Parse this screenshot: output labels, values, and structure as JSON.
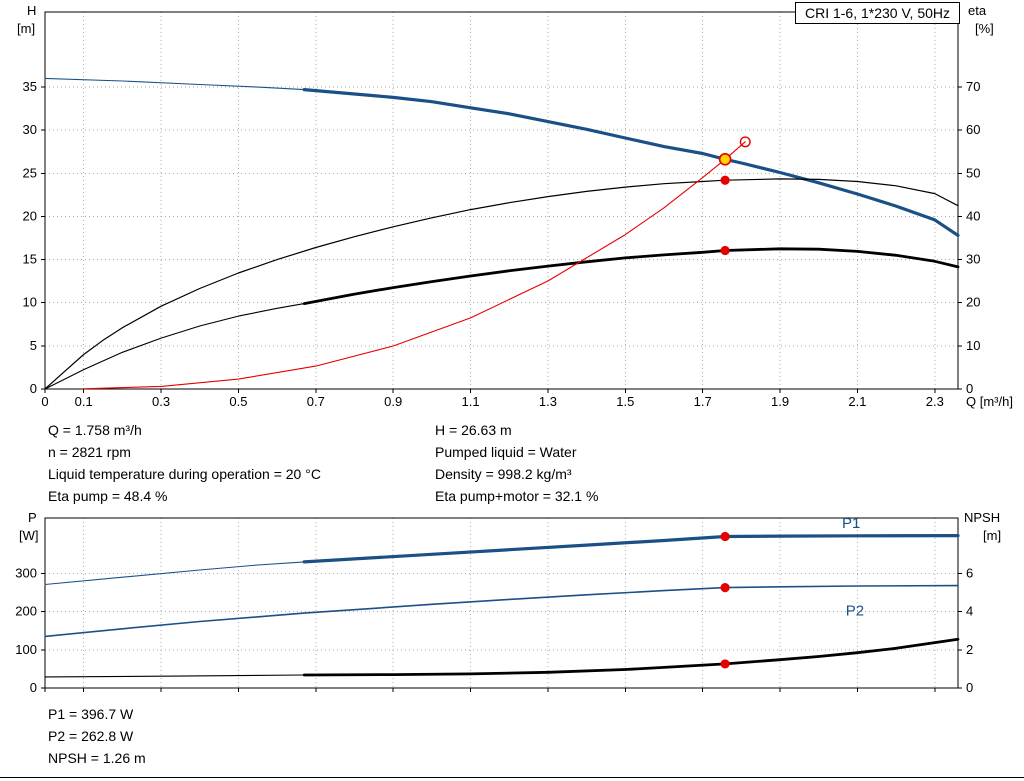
{
  "title_box": "CRI 1-6, 1*230 V, 50Hz",
  "info_top": {
    "left": [
      "Q = 1.758 m³/h",
      "n = 2821 rpm",
      "Liquid temperature during operation = 20 °C",
      "Eta pump = 48.4 %"
    ],
    "right": [
      "H = 26.63 m",
      "Pumped liquid = Water",
      "Density = 998.2 kg/m³",
      "Eta pump+motor = 32.1 %"
    ]
  },
  "info_bottom": [
    "P1 = 396.7 W",
    "P2 = 262.8 W",
    "NPSH = 1.26 m"
  ],
  "colors": {
    "curve_blue": "#1b5087",
    "curve_black": "#000000",
    "curve_red": "#e60000",
    "duty_yellow": "#ffd500",
    "grid": "#ababab",
    "axis": "#000000"
  },
  "chart_data": [
    {
      "type": "line",
      "title": "CRI 1-6, 1*230 V, 50Hz",
      "x": {
        "label": "Q [m³/h]",
        "min": 0,
        "max": 2.36,
        "ticks": [
          0,
          0.1,
          0.3,
          0.5,
          0.7,
          0.9,
          1.1,
          1.3,
          1.5,
          1.7,
          1.9,
          2.1,
          2.3
        ]
      },
      "y_left": {
        "label": "H",
        "unit": "[m]",
        "min": 0,
        "max": 43.7,
        "ticks": [
          0,
          5,
          10,
          15,
          20,
          25,
          30,
          35
        ]
      },
      "y_right": {
        "label": "eta",
        "unit": "[%]",
        "min": 0,
        "max": 87.4,
        "ticks": [
          0,
          10,
          20,
          30,
          40,
          50,
          60,
          70
        ]
      },
      "series": [
        {
          "name": "h-q-low",
          "axis": "left",
          "color": "#1b5087",
          "width": 1.1,
          "points": [
            [
              0,
              36
            ],
            [
              0.2,
              35.7
            ],
            [
              0.4,
              35.3
            ],
            [
              0.55,
              35.0
            ],
            [
              0.67,
              34.7
            ]
          ]
        },
        {
          "name": "h-q",
          "axis": "left",
          "color": "#1b5087",
          "width": 3.2,
          "points": [
            [
              0.67,
              34.7
            ],
            [
              0.8,
              34.2
            ],
            [
              0.9,
              33.8
            ],
            [
              1.0,
              33.3
            ],
            [
              1.1,
              32.6
            ],
            [
              1.2,
              31.9
            ],
            [
              1.3,
              31.0
            ],
            [
              1.4,
              30.1
            ],
            [
              1.5,
              29.1
            ],
            [
              1.6,
              28.1
            ],
            [
              1.7,
              27.3
            ],
            [
              1.758,
              26.63
            ],
            [
              1.8,
              26.2
            ],
            [
              1.9,
              25.1
            ],
            [
              2.0,
              23.9
            ],
            [
              2.1,
              22.6
            ],
            [
              2.2,
              21.2
            ],
            [
              2.3,
              19.6
            ],
            [
              2.36,
              17.8
            ]
          ]
        },
        {
          "name": "eta-pump",
          "axis": "right",
          "color": "#000000",
          "width": 1.2,
          "points": [
            [
              0,
              0
            ],
            [
              0.05,
              4
            ],
            [
              0.1,
              8
            ],
            [
              0.15,
              11.3
            ],
            [
              0.2,
              14.2
            ],
            [
              0.3,
              19.2
            ],
            [
              0.4,
              23.3
            ],
            [
              0.5,
              26.9
            ],
            [
              0.6,
              30.0
            ],
            [
              0.7,
              32.8
            ],
            [
              0.8,
              35.3
            ],
            [
              0.9,
              37.6
            ],
            [
              1.0,
              39.7
            ],
            [
              1.1,
              41.6
            ],
            [
              1.2,
              43.2
            ],
            [
              1.3,
              44.6
            ],
            [
              1.4,
              45.8
            ],
            [
              1.5,
              46.8
            ],
            [
              1.6,
              47.6
            ],
            [
              1.7,
              48.1
            ],
            [
              1.758,
              48.4
            ],
            [
              1.9,
              48.7
            ],
            [
              2.0,
              48.6
            ],
            [
              2.1,
              48.1
            ],
            [
              2.2,
              47.1
            ],
            [
              2.3,
              45.3
            ],
            [
              2.36,
              42.5
            ]
          ]
        },
        {
          "name": "eta-pump-motor-low",
          "axis": "right",
          "color": "#000000",
          "width": 1.1,
          "points": [
            [
              0,
              0
            ],
            [
              0.1,
              4.5
            ],
            [
              0.2,
              8.5
            ],
            [
              0.3,
              11.8
            ],
            [
              0.4,
              14.6
            ],
            [
              0.5,
              16.9
            ],
            [
              0.6,
              18.7
            ],
            [
              0.67,
              19.8
            ]
          ]
        },
        {
          "name": "eta-pump-motor",
          "axis": "right",
          "color": "#000000",
          "width": 2.8,
          "points": [
            [
              0.67,
              19.8
            ],
            [
              0.8,
              22.0
            ],
            [
              0.9,
              23.5
            ],
            [
              1.0,
              24.9
            ],
            [
              1.1,
              26.2
            ],
            [
              1.2,
              27.4
            ],
            [
              1.3,
              28.5
            ],
            [
              1.4,
              29.5
            ],
            [
              1.5,
              30.4
            ],
            [
              1.6,
              31.1
            ],
            [
              1.7,
              31.7
            ],
            [
              1.758,
              32.1
            ],
            [
              1.9,
              32.5
            ],
            [
              2.0,
              32.4
            ],
            [
              2.1,
              31.9
            ],
            [
              2.2,
              31.0
            ],
            [
              2.3,
              29.6
            ],
            [
              2.36,
              28.3
            ]
          ]
        },
        {
          "name": "system-curve",
          "axis": "left",
          "color": "#e60000",
          "width": 1.1,
          "points": [
            [
              0.1,
              0.02
            ],
            [
              0.3,
              0.3
            ],
            [
              0.5,
              1.15
            ],
            [
              0.7,
              2.66
            ],
            [
              0.9,
              4.99
            ],
            [
              1.1,
              8.24
            ],
            [
              1.3,
              12.52
            ],
            [
              1.5,
              17.9
            ],
            [
              1.6,
              21.0
            ],
            [
              1.7,
              24.5
            ],
            [
              1.758,
              26.63
            ],
            [
              1.81,
              28.65
            ]
          ]
        }
      ],
      "markers": [
        {
          "name": "open-point",
          "x": 1.81,
          "y": 28.65,
          "axis": "left",
          "style": "open"
        },
        {
          "name": "duty-point",
          "x": 1.758,
          "y": 26.63,
          "axis": "left",
          "style": "duty"
        },
        {
          "name": "eta-pump-point",
          "x": 1.758,
          "y": 48.4,
          "axis": "right",
          "style": "dot"
        },
        {
          "name": "eta-pump-motor-point",
          "x": 1.758,
          "y": 32.1,
          "axis": "right",
          "style": "dot"
        }
      ],
      "annotations": []
    },
    {
      "type": "line",
      "title": "",
      "x": {
        "label": "",
        "min": 0,
        "max": 2.36,
        "ticks": [
          0,
          0.1,
          0.3,
          0.5,
          0.7,
          0.9,
          1.1,
          1.3,
          1.5,
          1.7,
          1.9,
          2.1,
          2.3
        ]
      },
      "y_left": {
        "label": "P",
        "unit": "[W]",
        "min": 0,
        "max": 445,
        "ticks": [
          0,
          100,
          200,
          300
        ]
      },
      "y_right": {
        "label": "NPSH",
        "unit": "[m]",
        "min": 0,
        "max": 8.9,
        "ticks": [
          0,
          2,
          4,
          6
        ]
      },
      "series": [
        {
          "name": "p1-low",
          "axis": "left",
          "color": "#1b5087",
          "width": 1.1,
          "points": [
            [
              0,
              271
            ],
            [
              0.2,
              290
            ],
            [
              0.4,
              309
            ],
            [
              0.55,
              322
            ],
            [
              0.67,
              330
            ]
          ]
        },
        {
          "name": "p1",
          "axis": "left",
          "color": "#1b5087",
          "width": 3.2,
          "points": [
            [
              0.67,
              330
            ],
            [
              0.8,
              338
            ],
            [
              1.0,
              350
            ],
            [
              1.2,
              362
            ],
            [
              1.4,
              374
            ],
            [
              1.6,
              386
            ],
            [
              1.758,
              396.7
            ],
            [
              1.9,
              397.5
            ],
            [
              2.1,
              398.5
            ],
            [
              2.36,
              399
            ]
          ]
        },
        {
          "name": "p2",
          "axis": "left",
          "color": "#1b5087",
          "width": 1.6,
          "points": [
            [
              0,
              135
            ],
            [
              0.2,
              155
            ],
            [
              0.4,
              174
            ],
            [
              0.67,
              196
            ],
            [
              0.8,
              205
            ],
            [
              1.0,
              219
            ],
            [
              1.2,
              232
            ],
            [
              1.4,
              244
            ],
            [
              1.6,
              255
            ],
            [
              1.758,
              262.8
            ],
            [
              1.9,
              265
            ],
            [
              2.1,
              267
            ],
            [
              2.36,
              268
            ]
          ]
        },
        {
          "name": "npsh-low",
          "axis": "right",
          "color": "#000000",
          "width": 1.1,
          "points": [
            [
              0,
              0.58
            ],
            [
              0.3,
              0.62
            ],
            [
              0.67,
              0.68
            ]
          ]
        },
        {
          "name": "npsh",
          "axis": "right",
          "color": "#000000",
          "width": 2.8,
          "points": [
            [
              0.67,
              0.68
            ],
            [
              0.9,
              0.7
            ],
            [
              1.1,
              0.74
            ],
            [
              1.3,
              0.82
            ],
            [
              1.5,
              0.97
            ],
            [
              1.6,
              1.08
            ],
            [
              1.758,
              1.26
            ],
            [
              1.9,
              1.48
            ],
            [
              2.0,
              1.65
            ],
            [
              2.1,
              1.85
            ],
            [
              2.2,
              2.08
            ],
            [
              2.36,
              2.55
            ]
          ]
        }
      ],
      "markers": [
        {
          "name": "p1-point",
          "x": 1.758,
          "y": 396.7,
          "axis": "left",
          "style": "dot"
        },
        {
          "name": "p2-point",
          "x": 1.758,
          "y": 262.8,
          "axis": "left",
          "style": "dot"
        },
        {
          "name": "npsh-point",
          "x": 1.758,
          "y": 1.26,
          "axis": "right",
          "style": "dot"
        }
      ],
      "annotations": [
        {
          "text": "P1",
          "x": 2.06,
          "y": 419,
          "axis": "left",
          "color": "#1b5087"
        },
        {
          "text": "P2",
          "x": 2.07,
          "y": 190,
          "axis": "left",
          "color": "#1b5087"
        }
      ]
    }
  ]
}
